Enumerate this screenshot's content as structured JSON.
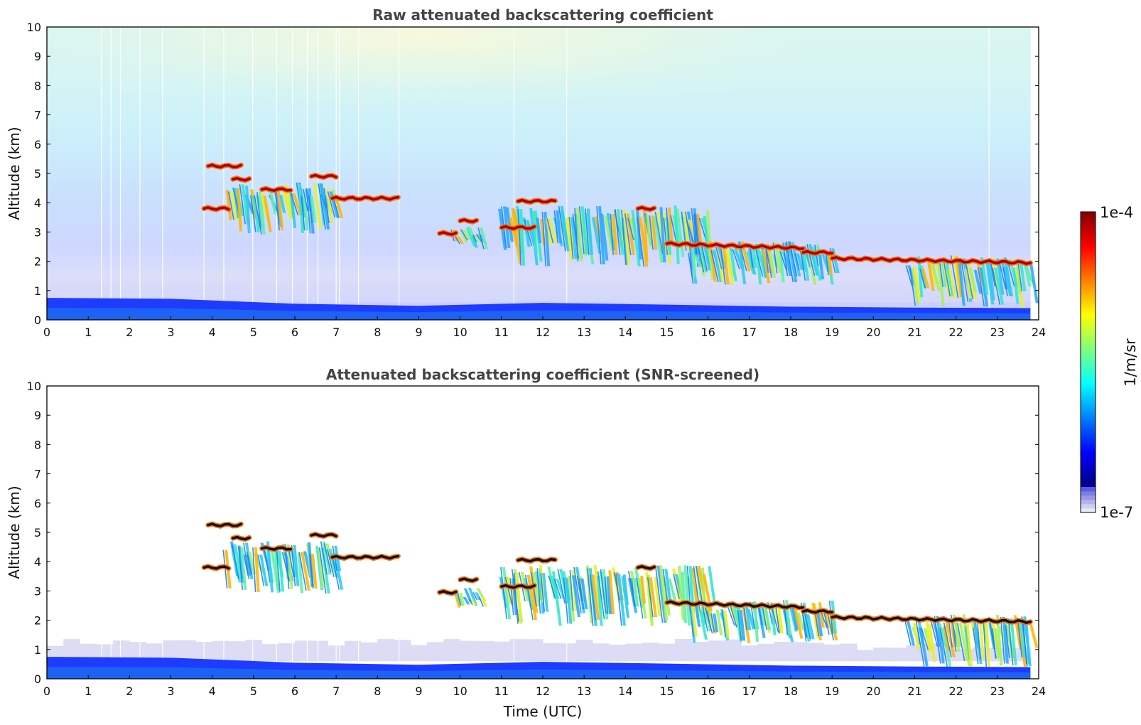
{
  "chart_data": [
    {
      "type": "heatmap",
      "title": "Raw attenuated backscattering coefficient",
      "xlabel": "",
      "ylabel": "Altitude (km)",
      "xlim": [
        0,
        24
      ],
      "ylim": [
        0,
        10
      ],
      "xticks": [
        0,
        1,
        2,
        3,
        4,
        5,
        6,
        7,
        8,
        9,
        10,
        11,
        12,
        13,
        14,
        15,
        16,
        17,
        18,
        19,
        20,
        21,
        22,
        23,
        24
      ],
      "yticks": [
        0,
        1,
        2,
        3,
        4,
        5,
        6,
        7,
        8,
        9,
        10
      ],
      "grid": false,
      "color_scale": {
        "min": "1e-7",
        "max": "1e-4",
        "unit": "1/m/sr",
        "colormap": "jet",
        "scale": "log"
      },
      "features": {
        "boundary_layer_top_km": {
          "t": [
            0,
            3,
            6,
            9,
            12,
            15,
            18,
            21,
            23.8
          ],
          "z": [
            0.75,
            0.72,
            0.55,
            0.48,
            0.58,
            0.52,
            0.45,
            0.42,
            0.4
          ]
        },
        "cloud_layers": [
          {
            "t0": 3.8,
            "t1": 4.4,
            "z": 3.8
          },
          {
            "t0": 3.9,
            "t1": 4.7,
            "z": 5.25
          },
          {
            "t0": 4.5,
            "t1": 4.9,
            "z": 4.8
          },
          {
            "t0": 5.2,
            "t1": 5.9,
            "z": 4.45
          },
          {
            "t0": 6.4,
            "t1": 7.0,
            "z": 4.9
          },
          {
            "t0": 6.9,
            "t1": 8.5,
            "z": 4.15
          },
          {
            "t0": 9.5,
            "t1": 9.9,
            "z": 2.95
          },
          {
            "t0": 10.0,
            "t1": 10.4,
            "z": 3.38
          },
          {
            "t0": 11.4,
            "t1": 12.3,
            "z": 4.05
          },
          {
            "t0": 11.0,
            "t1": 11.8,
            "z": 3.15
          },
          {
            "t0": 14.3,
            "t1": 14.7,
            "z": 3.8
          },
          {
            "t0": 15.0,
            "t1": 18.3,
            "z": 2.6
          },
          {
            "t0": 18.3,
            "t1": 19.0,
            "z": 2.3
          },
          {
            "t0": 19.0,
            "t1": 23.8,
            "z": 2.1
          }
        ],
        "virga_regions": [
          {
            "t0": 4.3,
            "t1": 7.0,
            "z_top": 4.7,
            "z_bottom": 2.9
          },
          {
            "t0": 9.8,
            "t1": 10.5,
            "z_top": 3.2,
            "z_bottom": 2.4
          },
          {
            "t0": 10.9,
            "t1": 16.0,
            "z_top": 3.9,
            "z_bottom": 1.8
          },
          {
            "t0": 15.5,
            "t1": 19.0,
            "z_top": 2.7,
            "z_bottom": 1.2
          },
          {
            "t0": 20.8,
            "t1": 23.8,
            "z_top": 2.2,
            "z_bottom": 0.4
          }
        ],
        "screened_lowlevel_top_km": 1.25
      }
    },
    {
      "type": "heatmap",
      "title": "Attenuated backscattering coefficient (SNR-screened)",
      "xlabel": "Time (UTC)",
      "ylabel": "Altitude (km)",
      "xlim": [
        0,
        24
      ],
      "ylim": [
        0,
        10
      ],
      "xticks": [
        0,
        1,
        2,
        3,
        4,
        5,
        6,
        7,
        8,
        9,
        10,
        11,
        12,
        13,
        14,
        15,
        16,
        17,
        18,
        19,
        20,
        21,
        22,
        23,
        24
      ],
      "yticks": [
        0,
        1,
        2,
        3,
        4,
        5,
        6,
        7,
        8,
        9,
        10
      ],
      "grid": false,
      "color_scale": {
        "min": "1e-7",
        "max": "1e-4",
        "unit": "1/m/sr",
        "colormap": "jet",
        "scale": "log"
      }
    }
  ],
  "colorbar": {
    "max_label": "1e-4",
    "min_label": "1e-7",
    "unit_label": "1/m/sr",
    "colors": [
      "#00007f",
      "#0000ff",
      "#007fff",
      "#00ffff",
      "#7fff7f",
      "#ffff00",
      "#ff7f00",
      "#ff0000",
      "#7f0000"
    ],
    "low_end_colors": [
      "#e8e8f8",
      "#cfcff0",
      "#b4b4ea",
      "#9898e6",
      "#7c7ce6",
      "#5858ea"
    ]
  }
}
